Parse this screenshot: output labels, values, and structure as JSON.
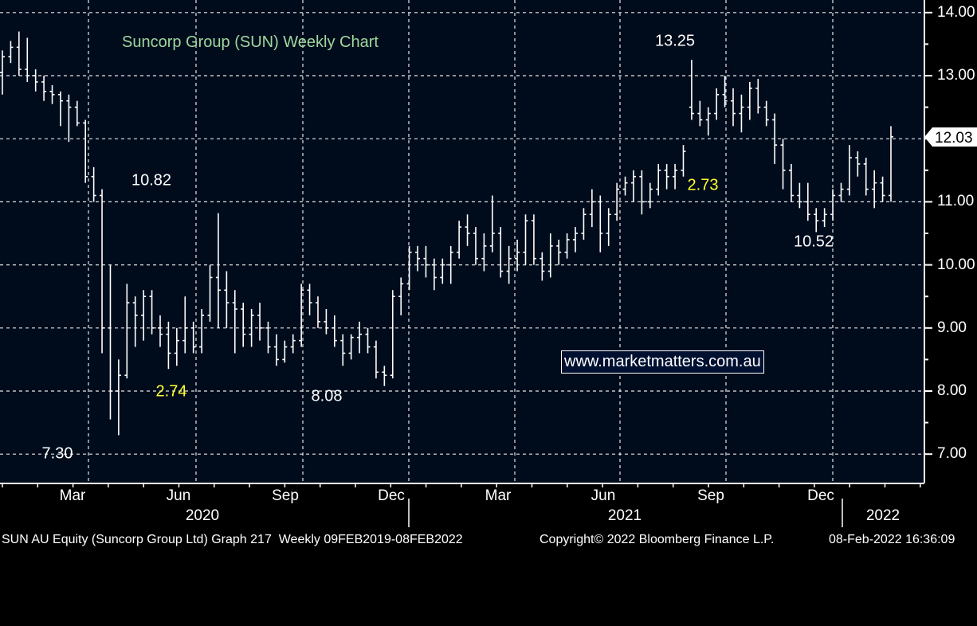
{
  "chart_data": {
    "type": "ohlc",
    "title": "Suncorp Group (SUN) Weekly Chart",
    "xlabel": "",
    "ylabel": "",
    "ylim": [
      6.55,
      14.0
    ],
    "yticks": [
      "14.00",
      "13.00",
      "12.00",
      "11.00",
      "10.00",
      "9.00",
      "8.00",
      "7.00"
    ],
    "ytick_values": [
      14,
      13,
      12,
      11,
      10,
      9,
      8,
      7
    ],
    "grid": true,
    "last_price": "12.03",
    "last_price_value": 12.03,
    "x_month_labels": [
      "Mar",
      "Jun",
      "Sep",
      "Dec",
      "Mar",
      "Jun",
      "Sep",
      "Dec"
    ],
    "x_year_labels": [
      "2020",
      "2021",
      "2022"
    ],
    "annotations": [
      {
        "text": "13.25",
        "color": "#ffffff"
      },
      {
        "text": "10.82",
        "color": "#ffffff"
      },
      {
        "text": "2.73",
        "color": "#ffff33"
      },
      {
        "text": "10.52",
        "color": "#ffffff"
      },
      {
        "text": "2.74",
        "color": "#ffff33"
      },
      {
        "text": "8.08",
        "color": "#ffffff"
      },
      {
        "text": "7.30",
        "color": "#ffffff"
      }
    ],
    "watermark": "www.marketmatters.com.au",
    "series": [
      {
        "values": [
          [
            13.05,
            13.4,
            12.7,
            13.3
          ],
          [
            13.3,
            13.55,
            13.2,
            13.45
          ],
          [
            13.45,
            13.7,
            13.0,
            13.1
          ],
          [
            13.1,
            13.6,
            12.9,
            13.0
          ],
          [
            13.0,
            13.1,
            12.75,
            12.9
          ],
          [
            12.9,
            13.0,
            12.6,
            12.75
          ],
          [
            12.75,
            12.85,
            12.55,
            12.7
          ],
          [
            12.7,
            12.75,
            12.2,
            12.6
          ],
          [
            12.6,
            12.7,
            11.95,
            12.5
          ],
          [
            12.5,
            12.6,
            12.2,
            12.25
          ],
          [
            12.25,
            12.3,
            11.3,
            11.4
          ],
          [
            11.4,
            11.55,
            11.0,
            11.1
          ],
          [
            11.1,
            11.2,
            8.6,
            9.0
          ],
          [
            9.0,
            10.0,
            7.55,
            8.0
          ],
          [
            8.0,
            8.5,
            7.3,
            8.25
          ],
          [
            8.25,
            9.7,
            8.2,
            9.4
          ],
          [
            9.4,
            9.5,
            8.7,
            9.2
          ],
          [
            9.2,
            9.6,
            8.8,
            9.5
          ],
          [
            9.5,
            9.6,
            8.9,
            9.0
          ],
          [
            9.0,
            9.2,
            8.7,
            8.9
          ],
          [
            8.9,
            9.1,
            8.35,
            8.6
          ],
          [
            8.6,
            9.0,
            8.4,
            8.8
          ],
          [
            8.8,
            9.5,
            8.6,
            9.0
          ],
          [
            9.0,
            9.1,
            8.6,
            8.7
          ],
          [
            8.7,
            9.3,
            8.6,
            9.2
          ],
          [
            9.2,
            10.0,
            9.1,
            9.8
          ],
          [
            9.8,
            10.82,
            9.0,
            9.6
          ],
          [
            9.6,
            9.9,
            9.0,
            9.4
          ],
          [
            9.4,
            9.6,
            8.6,
            9.3
          ],
          [
            9.3,
            9.4,
            8.7,
            8.9
          ],
          [
            8.9,
            9.3,
            8.7,
            9.2
          ],
          [
            9.2,
            9.4,
            8.8,
            9.0
          ],
          [
            9.0,
            9.1,
            8.6,
            8.7
          ],
          [
            8.7,
            8.9,
            8.4,
            8.5
          ],
          [
            8.5,
            8.8,
            8.45,
            8.7
          ],
          [
            8.7,
            8.9,
            8.6,
            8.8
          ],
          [
            8.8,
            9.7,
            8.7,
            9.6
          ],
          [
            9.6,
            9.7,
            9.2,
            9.4
          ],
          [
            9.4,
            9.5,
            9.0,
            9.1
          ],
          [
            9.1,
            9.3,
            8.9,
            9.0
          ],
          [
            9.0,
            9.2,
            8.7,
            8.8
          ],
          [
            8.8,
            8.9,
            8.4,
            8.6
          ],
          [
            8.6,
            8.9,
            8.5,
            8.85
          ],
          [
            8.85,
            9.1,
            8.6,
            8.9
          ],
          [
            8.9,
            9.0,
            8.6,
            8.7
          ],
          [
            8.7,
            8.8,
            8.2,
            8.3
          ],
          [
            8.3,
            8.4,
            8.08,
            8.25
          ],
          [
            8.25,
            9.6,
            8.2,
            9.5
          ],
          [
            9.5,
            9.8,
            9.2,
            9.7
          ],
          [
            9.7,
            10.3,
            9.6,
            10.2
          ],
          [
            10.2,
            10.3,
            9.9,
            10.1
          ],
          [
            10.1,
            10.3,
            9.8,
            10.0
          ],
          [
            10.0,
            10.1,
            9.6,
            9.8
          ],
          [
            9.8,
            10.1,
            9.7,
            10.0
          ],
          [
            10.0,
            10.3,
            9.7,
            10.2
          ],
          [
            10.2,
            10.7,
            10.1,
            10.6
          ],
          [
            10.6,
            10.8,
            10.3,
            10.5
          ],
          [
            10.5,
            10.6,
            10.0,
            10.1
          ],
          [
            10.1,
            10.5,
            9.9,
            10.3
          ],
          [
            10.3,
            11.1,
            10.2,
            10.5
          ],
          [
            10.5,
            10.6,
            9.8,
            9.9
          ],
          [
            9.9,
            10.3,
            9.7,
            10.1
          ],
          [
            10.1,
            10.4,
            9.9,
            10.2
          ],
          [
            10.2,
            10.8,
            10.0,
            10.7
          ],
          [
            10.7,
            10.8,
            10.0,
            10.1
          ],
          [
            10.1,
            10.2,
            9.75,
            9.9
          ],
          [
            9.9,
            10.5,
            9.8,
            10.3
          ],
          [
            10.3,
            10.4,
            10.0,
            10.2
          ],
          [
            10.2,
            10.5,
            10.1,
            10.4
          ],
          [
            10.4,
            10.6,
            10.2,
            10.5
          ],
          [
            10.5,
            10.9,
            10.4,
            10.8
          ],
          [
            10.8,
            11.2,
            10.6,
            11.0
          ],
          [
            11.0,
            11.1,
            10.2,
            10.5
          ],
          [
            10.5,
            10.9,
            10.3,
            10.8
          ],
          [
            10.8,
            11.3,
            10.7,
            11.2
          ],
          [
            11.2,
            11.4,
            11.1,
            11.3
          ],
          [
            11.3,
            11.5,
            11.0,
            11.4
          ],
          [
            11.4,
            11.5,
            10.8,
            11.0
          ],
          [
            11.0,
            11.3,
            10.9,
            11.2
          ],
          [
            11.2,
            11.6,
            11.1,
            11.5
          ],
          [
            11.5,
            11.6,
            11.2,
            11.4
          ],
          [
            11.4,
            11.6,
            11.2,
            11.5
          ],
          [
            11.5,
            11.9,
            11.4,
            11.8
          ],
          [
            12.5,
            13.25,
            12.3,
            12.4
          ],
          [
            12.4,
            12.6,
            12.2,
            12.3
          ],
          [
            12.3,
            12.5,
            12.05,
            12.4
          ],
          [
            12.4,
            12.8,
            12.3,
            12.7
          ],
          [
            12.7,
            13.0,
            12.5,
            12.6
          ],
          [
            12.6,
            12.8,
            12.2,
            12.4
          ],
          [
            12.4,
            12.7,
            12.1,
            12.5
          ],
          [
            12.5,
            12.9,
            12.3,
            12.8
          ],
          [
            12.8,
            12.95,
            12.4,
            12.5
          ],
          [
            12.5,
            12.6,
            12.2,
            12.3
          ],
          [
            12.3,
            12.4,
            11.6,
            11.9
          ],
          [
            11.9,
            12.0,
            11.2,
            11.5
          ],
          [
            11.5,
            11.6,
            11.0,
            11.1
          ],
          [
            11.1,
            11.3,
            10.9,
            11.0
          ],
          [
            11.0,
            11.3,
            10.7,
            10.8
          ],
          [
            10.8,
            10.9,
            10.52,
            10.7
          ],
          [
            10.7,
            10.9,
            10.6,
            10.8
          ],
          [
            10.8,
            11.2,
            10.7,
            11.1
          ],
          [
            11.1,
            11.3,
            11.0,
            11.2
          ],
          [
            11.2,
            11.9,
            11.1,
            11.7
          ],
          [
            11.7,
            11.8,
            11.4,
            11.6
          ],
          [
            11.6,
            11.7,
            11.1,
            11.2
          ],
          [
            11.2,
            11.5,
            10.9,
            11.3
          ],
          [
            11.3,
            11.4,
            11.0,
            11.1
          ],
          [
            11.1,
            12.2,
            11.0,
            12.03
          ]
        ]
      }
    ]
  },
  "footer": {
    "left": "SUN AU Equity (Suncorp Group Ltd) Graph 217  Weekly 09FEB2019-08FEB2022",
    "copyright": "Copyright© 2022 Bloomberg Finance L.P.",
    "timestamp": "08-Feb-2022 16:36:09"
  }
}
